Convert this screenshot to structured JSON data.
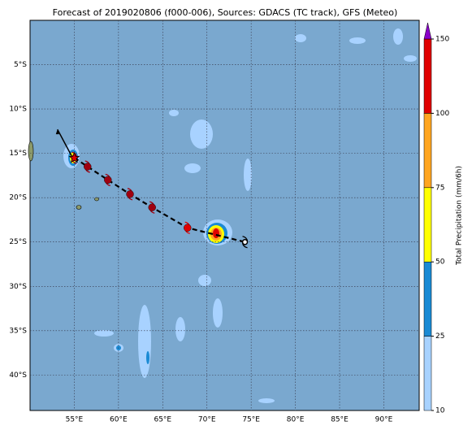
{
  "chart_data": {
    "type": "map",
    "title": "Forecast of 2019020806 (f000-006), Sources: GDACS (TC track), GFS (Meteo)",
    "xlim": [
      50,
      94
    ],
    "ylim": [
      -44,
      0
    ],
    "xticks": [
      {
        "value": 55,
        "label": "55°E"
      },
      {
        "value": 60,
        "label": "60°E"
      },
      {
        "value": 65,
        "label": "65°E"
      },
      {
        "value": 70,
        "label": "70°E"
      },
      {
        "value": 75,
        "label": "75°E"
      },
      {
        "value": 80,
        "label": "80°E"
      },
      {
        "value": 85,
        "label": "85°E"
      },
      {
        "value": 90,
        "label": "90°E"
      }
    ],
    "yticks": [
      {
        "value": -5,
        "label": "5°S"
      },
      {
        "value": -10,
        "label": "10°S"
      },
      {
        "value": -15,
        "label": "15°S"
      },
      {
        "value": -20,
        "label": "20°S"
      },
      {
        "value": -25,
        "label": "25°S"
      },
      {
        "value": -30,
        "label": "30°S"
      },
      {
        "value": -35,
        "label": "35°S"
      },
      {
        "value": -40,
        "label": "40°S"
      }
    ],
    "grid": true,
    "track": {
      "lon": [
        55,
        56.5,
        58.8,
        61.3,
        63.8,
        67.8,
        74.3
      ],
      "lat": [
        -15.5,
        -16.5,
        -18,
        -19.6,
        -21.1,
        -23.4,
        -25
      ]
    },
    "past_track": {
      "lon": [
        54.7,
        53.1
      ],
      "lat": [
        -15.3,
        -12.3
      ]
    },
    "colorbar": {
      "label": "Total Precipitation (mm/6h)",
      "ticks": [
        10,
        25,
        50,
        75,
        100,
        150
      ],
      "colors": [
        "#a8d2ff",
        "#1a8ad4",
        "#ffff00",
        "#ffa520",
        "#e00000"
      ],
      "extend_color": "#8a00c8"
    }
  }
}
